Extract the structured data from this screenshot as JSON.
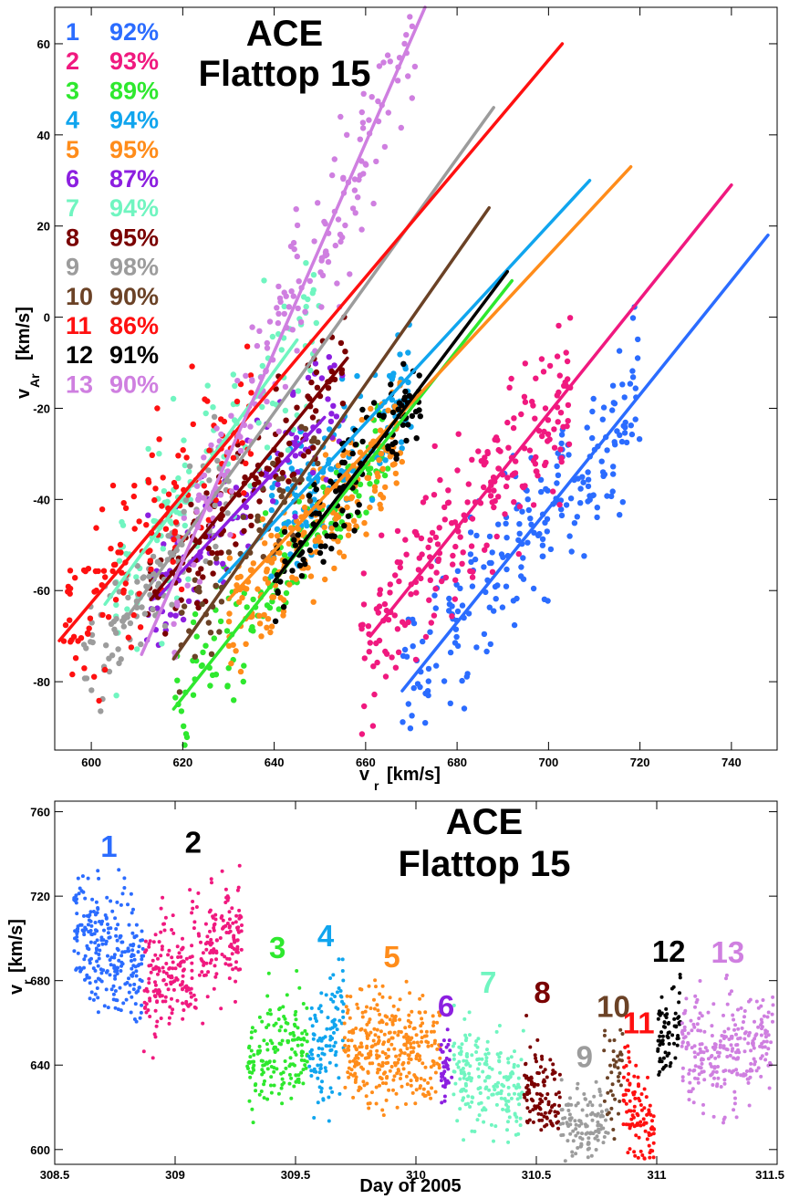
{
  "colors": {
    "1": "#2b6cff",
    "2": "#f0197f",
    "3": "#2ee82e",
    "4": "#10a5ee",
    "5": "#ff8c1a",
    "6": "#8c1fe0",
    "7": "#70f5c0",
    "8": "#7a0000",
    "9": "#9c9c9c",
    "10": "#6b4226",
    "11": "#ff1010",
    "12": "#000000",
    "13": "#cf7fe0"
  },
  "chart_data": [
    {
      "type": "scatter",
      "title": "ACE",
      "subtitle": "Flattop 15",
      "xlabel": "v",
      "xlabel_sub": "r",
      "xlabel_unit": "[km/s]",
      "ylabel": "v",
      "ylabel_sub": "Ar",
      "ylabel_unit": "[km/s]",
      "xlim": [
        592,
        750
      ],
      "ylim": [
        -95,
        68
      ],
      "xticks": [
        "600",
        "620",
        "640",
        "660",
        "680",
        "700",
        "720",
        "740"
      ],
      "yticks": [
        "-80",
        "-60",
        "-40",
        "-20",
        "0",
        "20",
        "40",
        "60"
      ],
      "legend": [
        {
          "id": "1",
          "label": "1",
          "value": "92%"
        },
        {
          "id": "2",
          "label": "2",
          "value": "93%"
        },
        {
          "id": "3",
          "label": "3",
          "value": "89%"
        },
        {
          "id": "4",
          "label": "4",
          "value": "94%"
        },
        {
          "id": "5",
          "label": "5",
          "value": "95%"
        },
        {
          "id": "6",
          "label": "6",
          "value": "87%"
        },
        {
          "id": "7",
          "label": "7",
          "value": "94%"
        },
        {
          "id": "8",
          "label": "8",
          "value": "95%"
        },
        {
          "id": "9",
          "label": "9",
          "value": "98%"
        },
        {
          "id": "10",
          "label": "10",
          "value": "90%"
        },
        {
          "id": "11",
          "label": "11",
          "value": "86%"
        },
        {
          "id": "12",
          "label": "12",
          "value": "91%"
        },
        {
          "id": "13",
          "label": "13",
          "value": "90%"
        }
      ],
      "series": [
        {
          "id": "1",
          "fit": [
            [
              668,
              -82
            ],
            [
              748,
              18
            ]
          ],
          "cloud": {
            "x": [
              668,
              720
            ],
            "yoff": 0,
            "spread": 9,
            "n": 230
          }
        },
        {
          "id": "2",
          "fit": [
            [
              661,
              -70
            ],
            [
              740,
              29
            ]
          ],
          "cloud": {
            "x": [
              659,
              705
            ],
            "yoff": 0,
            "spread": 9,
            "n": 230
          }
        },
        {
          "id": "3",
          "fit": [
            [
              618,
              -86
            ],
            [
              692,
              8
            ]
          ],
          "cloud": {
            "x": [
              618,
              665
            ],
            "yoff": 0,
            "spread": 7,
            "n": 160
          }
        },
        {
          "id": "4",
          "fit": [
            [
              628,
              -58
            ],
            [
              709,
              30
            ]
          ],
          "cloud": {
            "x": [
              638,
              670
            ],
            "yoff": -2,
            "spread": 7,
            "n": 140
          }
        },
        {
          "id": "5",
          "fit": [
            [
              630,
              -62
            ],
            [
              718,
              33
            ]
          ],
          "cloud": {
            "x": [
              630,
              668
            ],
            "yoff": -4,
            "spread": 7,
            "n": 220
          }
        },
        {
          "id": "6",
          "fit": [
            [
              615,
              -61
            ],
            [
              651,
              -22
            ]
          ],
          "cloud": {
            "x": [
              612,
              655
            ],
            "yoff": 2,
            "spread": 8,
            "n": 130
          }
        },
        {
          "id": "7",
          "fit": [
            [
              603,
              -63
            ],
            [
              645,
              -5
            ]
          ],
          "cloud": {
            "x": [
              605,
              650
            ],
            "yoff": -2,
            "spread": 9,
            "n": 130
          }
        },
        {
          "id": "8",
          "fit": [
            [
              613,
              -62
            ],
            [
              656,
              -9
            ]
          ],
          "cloud": {
            "x": [
              612,
              656
            ],
            "yoff": 0,
            "spread": 6,
            "n": 140
          }
        },
        {
          "id": "9",
          "fit": [
            [
              607,
              -67
            ],
            [
              688,
              46
            ]
          ],
          "cloud": {
            "x": [
              598,
              632
            ],
            "yoff": 0,
            "spread": 7,
            "n": 110
          }
        },
        {
          "id": "10",
          "fit": [
            [
              618,
              -75
            ],
            [
              687,
              24
            ]
          ],
          "cloud": {
            "x": [
              618,
              650
            ],
            "yoff": 0,
            "spread": 6,
            "n": 60
          }
        },
        {
          "id": "11",
          "fit": [
            [
              593,
              -71
            ],
            [
              703,
              60
            ]
          ],
          "cloud": {
            "x": [
              594,
              635
            ],
            "yoff": 0,
            "spread": 9,
            "n": 140
          }
        },
        {
          "id": "12",
          "fit": [
            [
              640,
              -58
            ],
            [
              691,
              10
            ]
          ],
          "cloud": {
            "x": [
              640,
              672
            ],
            "yoff": 0,
            "spread": 6,
            "n": 120
          }
        },
        {
          "id": "13",
          "fit": [
            [
              611,
              -74
            ],
            [
              673,
              68
            ]
          ],
          "cloud": {
            "x": [
              618,
              672
            ],
            "yoff": 0,
            "spread": 9,
            "n": 180
          }
        }
      ]
    },
    {
      "type": "scatter",
      "title": "ACE",
      "subtitle": "Flattop 15",
      "xlabel": "Day of 2005",
      "ylabel": "v",
      "ylabel_sub": "r",
      "ylabel_unit": "[km/s]",
      "xlim": [
        308.5,
        311.5
      ],
      "ylim": [
        593,
        765
      ],
      "xticks": [
        {
          "v": 308.5,
          "label": "308.5"
        },
        {
          "v": 309,
          "label": "309"
        },
        {
          "v": 309.5,
          "label": "309.5"
        },
        {
          "v": 310,
          "label": "310"
        },
        {
          "v": 310.5,
          "label": "310.5"
        },
        {
          "v": 311,
          "label": "311"
        },
        {
          "v": 311.5,
          "label": "311.5"
        }
      ],
      "yticks": [
        "600",
        "640",
        "680",
        "720",
        "760"
      ],
      "segments": [
        {
          "id": "1",
          "label": "1",
          "label_color": "#2b6cff",
          "t": [
            308.58,
            308.87
          ],
          "v": [
            705,
            685
          ],
          "spread": 14,
          "n": 260
        },
        {
          "id": "2",
          "label": "2",
          "label_color": "#000000",
          "t": [
            308.87,
            309.28
          ],
          "v": [
            675,
            705
          ],
          "spread": 14,
          "n": 300
        },
        {
          "id": "3",
          "label": "3",
          "label_color": "#2ee82e",
          "t": [
            309.3,
            309.55
          ],
          "v": [
            640,
            650
          ],
          "spread": 12,
          "n": 170
        },
        {
          "id": "4",
          "label": "4",
          "label_color": "#10a5ee",
          "t": [
            309.55,
            309.7
          ],
          "v": [
            640,
            665
          ],
          "spread": 14,
          "n": 110
        },
        {
          "id": "5",
          "label": "5",
          "label_color": "#ff8c1a",
          "t": [
            309.7,
            310.1
          ],
          "v": [
            650,
            645
          ],
          "spread": 13,
          "n": 330
        },
        {
          "id": "6",
          "label": "6",
          "label_color": "#8c1fe0",
          "t": [
            310.1,
            310.15
          ],
          "v": [
            637,
            642
          ],
          "spread": 8,
          "n": 40
        },
        {
          "id": "7",
          "label": "7",
          "label_color": "#70f5c0",
          "t": [
            310.15,
            310.45
          ],
          "v": [
            640,
            625
          ],
          "spread": 12,
          "n": 200
        },
        {
          "id": "8",
          "label": "8",
          "label_color": "#7a0000",
          "t": [
            310.45,
            310.6
          ],
          "v": [
            635,
            620
          ],
          "spread": 9,
          "n": 110
        },
        {
          "id": "9",
          "label": "9",
          "label_color": "#9c9c9c",
          "t": [
            310.6,
            310.8
          ],
          "v": [
            610,
            612
          ],
          "spread": 8,
          "n": 120
        },
        {
          "id": "10",
          "label": "10",
          "label_color": "#6b4226",
          "t": [
            310.78,
            310.86
          ],
          "v": [
            630,
            640
          ],
          "spread": 12,
          "n": 40
        },
        {
          "id": "11",
          "label": "11",
          "label_color": "#ff1010",
          "t": [
            310.86,
            310.99
          ],
          "v": [
            625,
            605
          ],
          "spread": 12,
          "n": 110
        },
        {
          "id": "12",
          "label": "12",
          "label_color": "#000000",
          "t": [
            311.0,
            311.1
          ],
          "v": [
            648,
            665
          ],
          "spread": 10,
          "n": 70
        },
        {
          "id": "13",
          "label": "13",
          "label_color": "#cf7fe0",
          "t": [
            311.1,
            311.49
          ],
          "v": [
            645,
            650
          ],
          "spread": 14,
          "n": 260
        }
      ]
    }
  ]
}
